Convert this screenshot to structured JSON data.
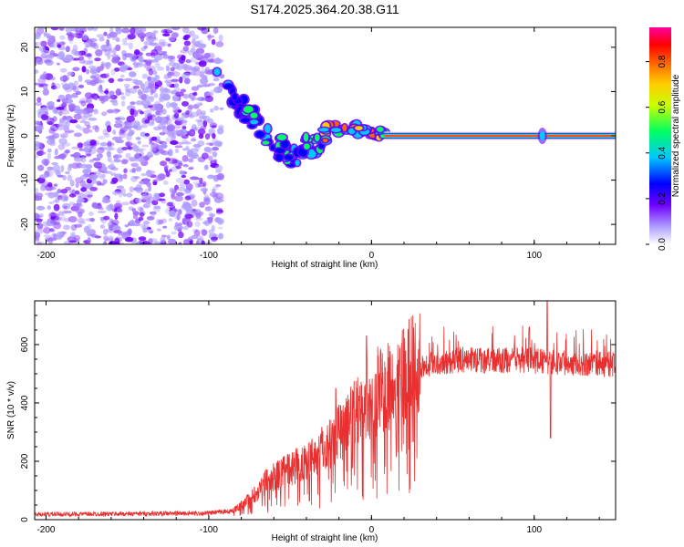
{
  "title": "S174.2025.364.20.38.G11",
  "chart_data": [
    {
      "type": "heatmap",
      "id": "spectrogram",
      "xlabel": "Height of straight line (km)",
      "ylabel": "Frequency (Hz)",
      "xlim": [
        -207,
        150
      ],
      "ylim": [
        -24.5,
        24.5
      ],
      "xticks": [
        -200,
        -100,
        0,
        100
      ],
      "yticks": [
        -20,
        -10,
        0,
        10,
        20
      ],
      "features": {
        "noise_region_x": [
          -207,
          -92
        ],
        "diagonal_trace": [
          [
            -93,
            12
          ],
          [
            -85,
            9
          ],
          [
            -78,
            6
          ],
          [
            -70,
            3
          ],
          [
            -62,
            0
          ],
          [
            -55,
            -3
          ],
          [
            -48,
            -5
          ],
          [
            -40,
            -3
          ],
          [
            -33,
            -1
          ]
        ],
        "wiggle_trace": [
          [
            -33,
            -1.5
          ],
          [
            -28,
            1
          ],
          [
            -22,
            2
          ],
          [
            -15,
            1
          ],
          [
            -10,
            2
          ],
          [
            -5,
            1
          ],
          [
            0,
            0.8
          ],
          [
            8,
            0.2
          ]
        ],
        "steady_line_freq": 0,
        "steady_line_x": [
          8,
          150
        ],
        "spike_x": 105
      },
      "colorbar": {
        "label": "Normalized spectral amplitude",
        "range": [
          0,
          0.95
        ],
        "ticks": [
          0.0,
          0.2,
          0.4,
          0.6,
          0.8
        ],
        "tick_labels": [
          "0.0",
          "0.2",
          "0.4",
          "0.6",
          "0.8"
        ],
        "colors": [
          "#ffffff",
          "#b0a0ff",
          "#7000ff",
          "#0000ff",
          "#00c8ff",
          "#00ff60",
          "#c8ff00",
          "#ffcc00",
          "#ff6000",
          "#ff0000",
          "#ff00a0"
        ]
      }
    },
    {
      "type": "line",
      "id": "snr",
      "xlabel": "Height of straight line (km)",
      "ylabel": "SNR (10 * v/v)",
      "xlim": [
        -207,
        150
      ],
      "ylim": [
        0,
        750
      ],
      "xticks": [
        -200,
        -100,
        0,
        100
      ],
      "yticks": [
        0,
        200,
        400,
        600
      ],
      "line_color": "#e83030",
      "envelope": [
        [
          -207,
          18
        ],
        [
          -150,
          20
        ],
        [
          -100,
          22
        ],
        [
          -85,
          30
        ],
        [
          -75,
          70
        ],
        [
          -65,
          130
        ],
        [
          -55,
          160
        ],
        [
          -45,
          190
        ],
        [
          -35,
          220
        ],
        [
          -25,
          270
        ],
        [
          -20,
          310
        ],
        [
          -15,
          320
        ],
        [
          -10,
          360
        ],
        [
          -5,
          400
        ],
        [
          0,
          420
        ],
        [
          5,
          450
        ],
        [
          10,
          470
        ],
        [
          15,
          490
        ],
        [
          20,
          500
        ],
        [
          25,
          520
        ],
        [
          30,
          530
        ],
        [
          40,
          540
        ],
        [
          50,
          545
        ],
        [
          60,
          550
        ],
        [
          70,
          545
        ],
        [
          80,
          545
        ],
        [
          90,
          550
        ],
        [
          100,
          545
        ],
        [
          110,
          540
        ],
        [
          120,
          540
        ],
        [
          130,
          535
        ],
        [
          140,
          535
        ],
        [
          150,
          530
        ]
      ],
      "spikes": [
        [
          -22,
          450
        ],
        [
          -3,
          630
        ],
        [
          108,
          760
        ],
        [
          110,
          280
        ],
        [
          97,
          660
        ]
      ]
    }
  ]
}
